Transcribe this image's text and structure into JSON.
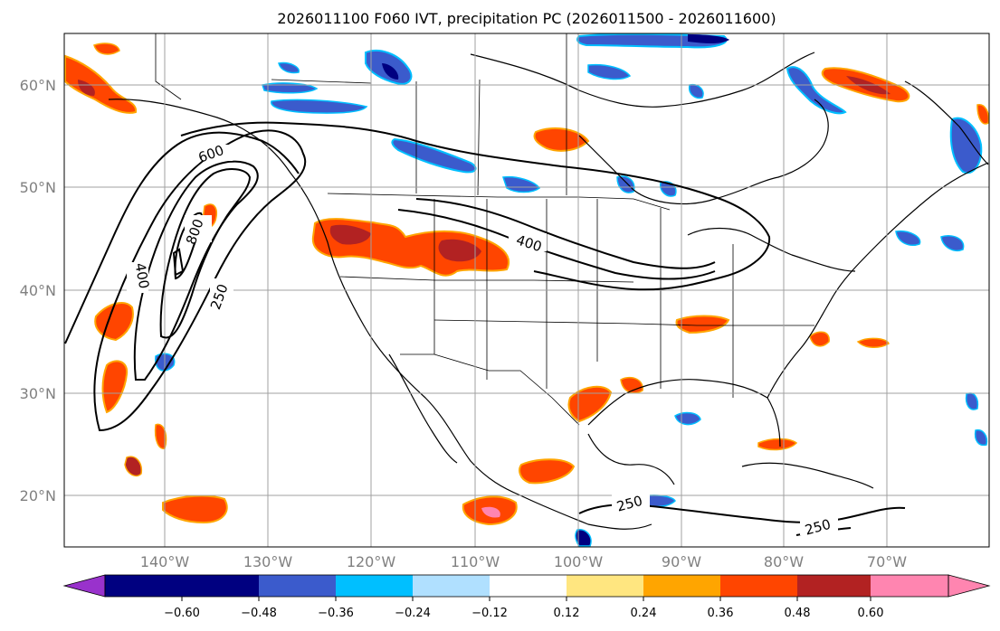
{
  "title": "2026011100 F060 IVT, precipitation PC (2026011500 - 2026011600)",
  "map": {
    "lon_range": [
      -150,
      -62
    ],
    "lat_range": [
      15,
      65
    ],
    "lat_labels": [
      "20°N",
      "30°N",
      "40°N",
      "50°N",
      "60°N"
    ],
    "lon_labels": [
      "140°W",
      "130°W",
      "120°W",
      "110°W",
      "100°W",
      "90°W",
      "80°W",
      "70°W"
    ],
    "ivt_contour_labels": [
      "600",
      "800",
      "400",
      "250",
      "400",
      "250",
      "250"
    ]
  },
  "colorbar": {
    "ticks": [
      "−0.60",
      "−0.48",
      "−0.36",
      "−0.24",
      "−0.12",
      "0.12",
      "0.24",
      "0.36",
      "0.48",
      "0.60"
    ],
    "colors": [
      "#9932cc",
      "#000080",
      "#3b5bcc",
      "#00bfff",
      "#b0e0ff",
      "#ffffff",
      "#ffe680",
      "#ffa500",
      "#ff4500",
      "#b22222",
      "#ff85b0"
    ]
  },
  "colors": {
    "negative_strong": "#000080",
    "negative_mid": "#3b5bcc",
    "negative_light": "#00bfff",
    "positive_light": "#ffe680",
    "positive_mid": "#ffa500",
    "positive_strong": "#ff4500",
    "positive_max": "#b22222"
  }
}
